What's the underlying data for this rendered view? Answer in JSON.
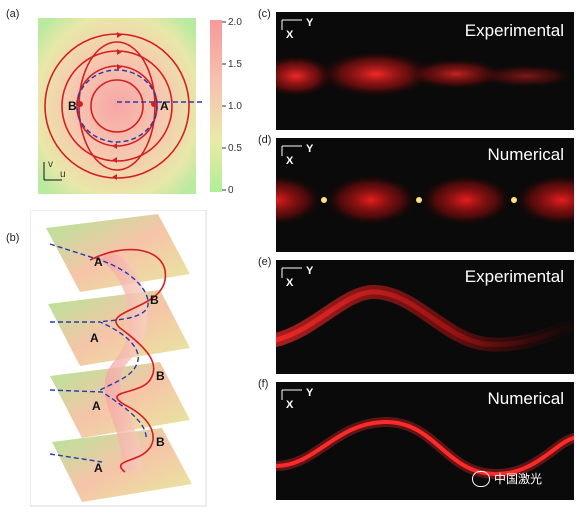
{
  "panels": {
    "a": {
      "label": "(a)",
      "point_b": "B",
      "point_a": "A",
      "axis_v": "v",
      "axis_u": "u"
    },
    "b": {
      "label": "(b)",
      "point_a": "A",
      "point_b": "B"
    },
    "c": {
      "label": "(c)",
      "title": "Experimental"
    },
    "d": {
      "label": "(d)",
      "title": "Numerical"
    },
    "e": {
      "label": "(e)",
      "title": "Experimental"
    },
    "f": {
      "label": "(f)",
      "title": "Numerical"
    }
  },
  "axis_text": {
    "x": "X",
    "y": "Y"
  },
  "colorbar": {
    "ticks": [
      "2.0",
      "1.5",
      "1.0",
      "0.5",
      "0"
    ],
    "range": [
      0,
      2.0
    ]
  },
  "watermark": {
    "text": "中国激光"
  },
  "colors": {
    "red_curve": "#d42020",
    "blue_dashed": "#2a3bb0",
    "beam": "#ff2a2a"
  }
}
